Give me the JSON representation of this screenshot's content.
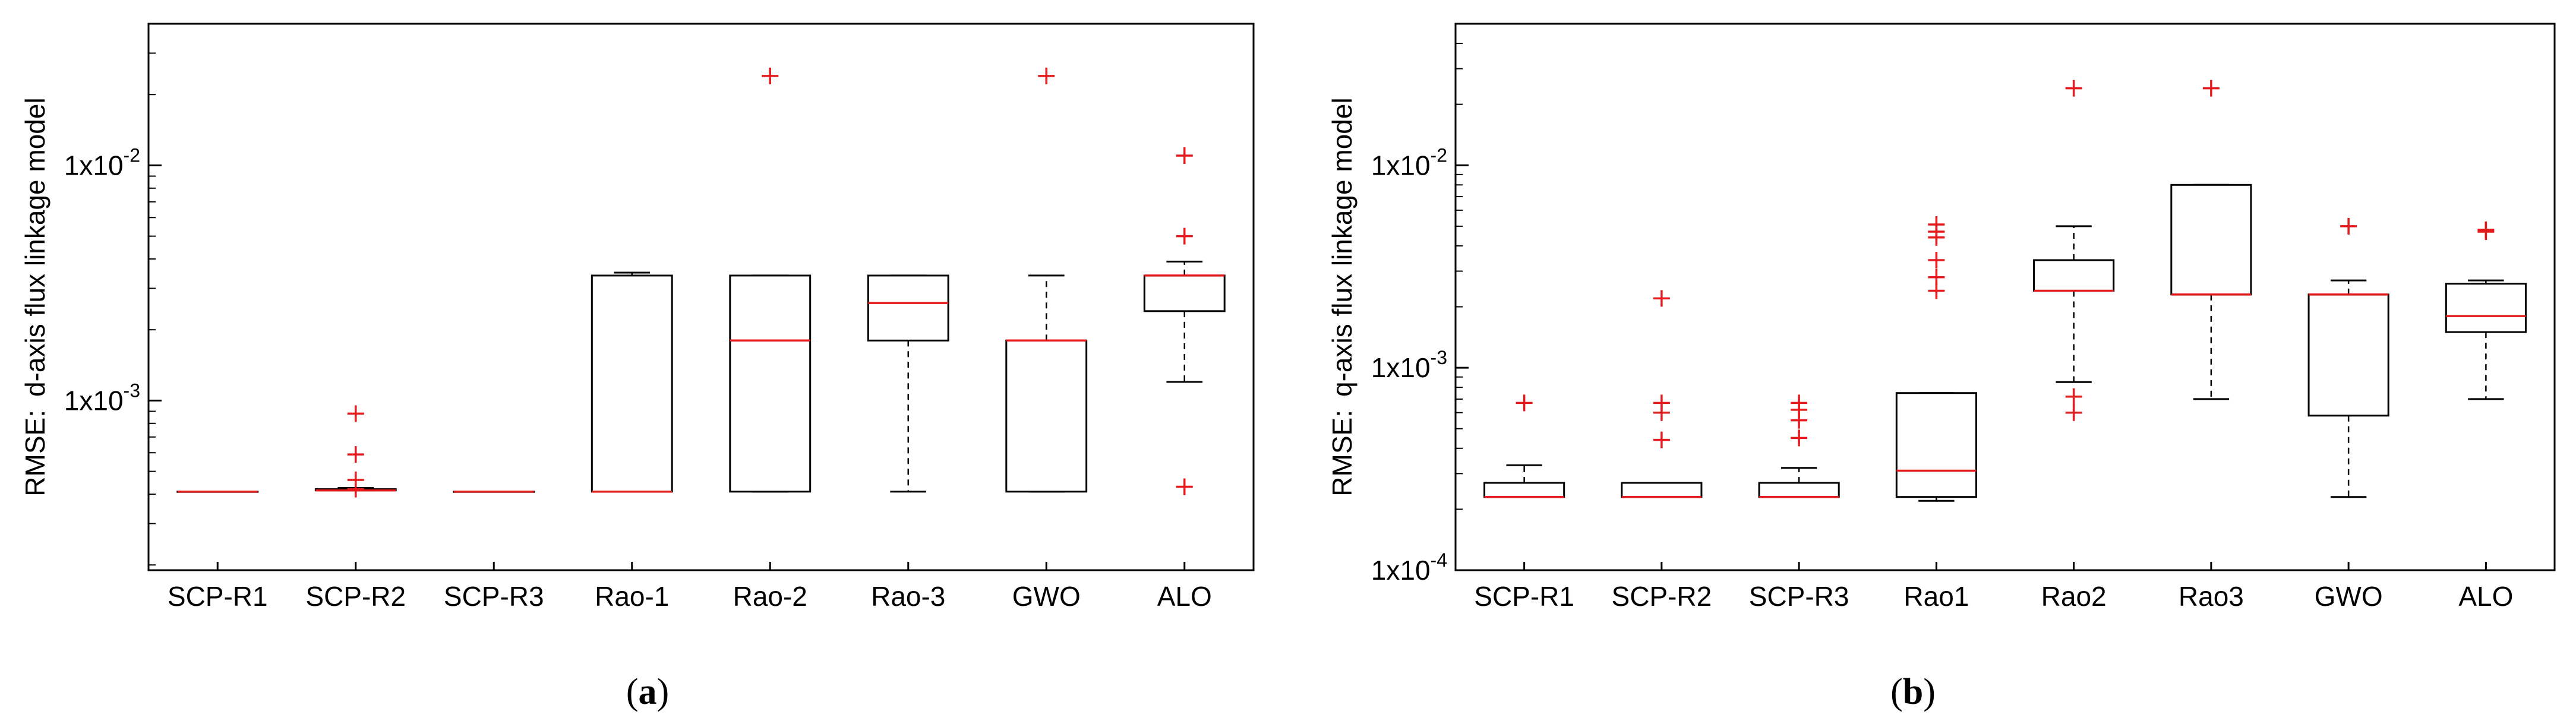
{
  "chart_data": [
    {
      "type": "box",
      "panel_label": "a",
      "ylabel_prefix": "RMSE:",
      "ylabel": "d-axis flux linkage model",
      "yscale": "log",
      "ylim": [
        0.00019,
        0.04
      ],
      "yticks": [
        {
          "value": 0.001,
          "mantissa": "1x10",
          "exponent": "-3"
        },
        {
          "value": 0.01,
          "mantissa": "1x10",
          "exponent": "-2"
        }
      ],
      "categories": [
        "SCP-R1",
        "SCP-R2",
        "SCP-R3",
        "Rao-1",
        "Rao-2",
        "Rao-3",
        "GWO",
        "ALO"
      ],
      "boxes": [
        {
          "q1": 0.00041,
          "median": 0.00041,
          "q3": 0.00041,
          "whisker_low": 0.00041,
          "whisker_high": 0.00041,
          "outliers": []
        },
        {
          "q1": 0.000415,
          "median": 0.000415,
          "q3": 0.00042,
          "whisker_low": 0.000415,
          "whisker_high": 0.000425,
          "outliers": [
            0.00088,
            0.00059,
            0.00046,
            0.00042
          ]
        },
        {
          "q1": 0.00041,
          "median": 0.00041,
          "q3": 0.00041,
          "whisker_low": 0.00041,
          "whisker_high": 0.00041,
          "outliers": []
        },
        {
          "q1": 0.00041,
          "median": 0.00041,
          "q3": 0.0034,
          "whisker_low": 0.00041,
          "whisker_high": 0.0035,
          "outliers": []
        },
        {
          "q1": 0.00041,
          "median": 0.0018,
          "q3": 0.0034,
          "whisker_low": 0.00041,
          "whisker_high": 0.0034,
          "outliers": [
            0.024
          ]
        },
        {
          "q1": 0.0018,
          "median": 0.0026,
          "q3": 0.0034,
          "whisker_low": 0.00041,
          "whisker_high": 0.0034,
          "outliers": []
        },
        {
          "q1": 0.00041,
          "median": 0.0018,
          "q3": 0.0018,
          "whisker_low": 0.00041,
          "whisker_high": 0.0034,
          "outliers": [
            0.024
          ]
        },
        {
          "q1": 0.0024,
          "median": 0.0034,
          "q3": 0.0034,
          "whisker_low": 0.0012,
          "whisker_high": 0.0039,
          "outliers": [
            0.011,
            0.005,
            0.00043
          ]
        }
      ]
    },
    {
      "type": "box",
      "panel_label": "b",
      "ylabel_prefix": "RMSE:",
      "ylabel": "q-axis flux linkage model",
      "yscale": "log",
      "ylim": [
        0.0001,
        0.05
      ],
      "yticks": [
        {
          "value": 0.0001,
          "mantissa": "1x10",
          "exponent": "-4"
        },
        {
          "value": 0.001,
          "mantissa": "1x10",
          "exponent": "-3"
        },
        {
          "value": 0.01,
          "mantissa": "1x10",
          "exponent": "-2"
        }
      ],
      "categories": [
        "SCP-R1",
        "SCP-R2",
        "SCP-R3",
        "Rao1",
        "Rao2",
        "Rao3",
        "GWO",
        "ALO"
      ],
      "boxes": [
        {
          "q1": 0.00023,
          "median": 0.00023,
          "q3": 0.00027,
          "whisker_low": 0.00023,
          "whisker_high": 0.00033,
          "outliers": [
            0.00067
          ]
        },
        {
          "q1": 0.00023,
          "median": 0.00023,
          "q3": 0.00027,
          "whisker_low": 0.00023,
          "whisker_high": 0.00027,
          "outliers": [
            0.0022,
            0.00067,
            0.0006,
            0.00044
          ]
        },
        {
          "q1": 0.00023,
          "median": 0.00023,
          "q3": 0.00027,
          "whisker_low": 0.00023,
          "whisker_high": 0.00032,
          "outliers": [
            0.00067,
            0.00062,
            0.00055,
            0.00045
          ]
        },
        {
          "q1": 0.00023,
          "median": 0.00031,
          "q3": 0.00075,
          "whisker_low": 0.00022,
          "whisker_high": 0.00075,
          "outliers": [
            0.0051,
            0.0047,
            0.0044,
            0.0034,
            0.0028,
            0.0024
          ]
        },
        {
          "q1": 0.0024,
          "median": 0.0024,
          "q3": 0.0034,
          "whisker_low": 0.00085,
          "whisker_high": 0.005,
          "outliers": [
            0.024,
            0.00072,
            0.0006
          ]
        },
        {
          "q1": 0.0023,
          "median": 0.0023,
          "q3": 0.008,
          "whisker_low": 0.0007,
          "whisker_high": 0.008,
          "outliers": [
            0.024
          ]
        },
        {
          "q1": 0.00058,
          "median": 0.0023,
          "q3": 0.0023,
          "whisker_low": 0.00023,
          "whisker_high": 0.0027,
          "outliers": [
            0.005
          ]
        },
        {
          "q1": 0.0015,
          "median": 0.0018,
          "q3": 0.0026,
          "whisker_low": 0.0007,
          "whisker_high": 0.0027,
          "outliers": [
            0.0048,
            0.0047
          ]
        }
      ]
    }
  ]
}
